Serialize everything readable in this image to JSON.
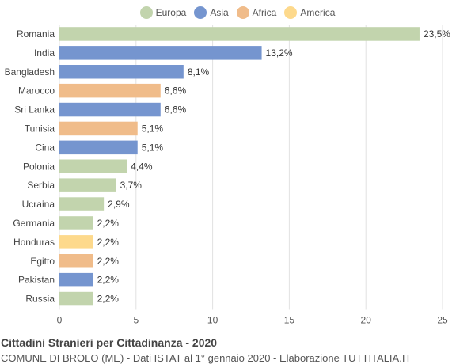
{
  "chart_data": {
    "type": "bar",
    "orientation": "horizontal",
    "title": "Cittadini Stranieri per Cittadinanza - 2020",
    "subtitle": "COMUNE DI BROLO (ME) - Dati ISTAT al 1° gennaio 2020 - Elaborazione TUTTITALIA.IT",
    "xlim": [
      0,
      25
    ],
    "xticks": [
      0,
      5,
      10,
      15,
      20,
      25
    ],
    "grid": true,
    "legend_position": "top-center",
    "legend": [
      {
        "name": "Europa",
        "color": "#c2d4ad"
      },
      {
        "name": "Asia",
        "color": "#7595cf"
      },
      {
        "name": "Africa",
        "color": "#f0bc8a"
      },
      {
        "name": "America",
        "color": "#fdd98c"
      }
    ],
    "categories": [
      "Romania",
      "India",
      "Bangladesh",
      "Marocco",
      "Sri Lanka",
      "Tunisia",
      "Cina",
      "Polonia",
      "Serbia",
      "Ucraina",
      "Germania",
      "Honduras",
      "Egitto",
      "Pakistan",
      "Russia"
    ],
    "values": [
      23.5,
      13.2,
      8.1,
      6.6,
      6.6,
      5.1,
      5.1,
      4.4,
      3.7,
      2.9,
      2.2,
      2.2,
      2.2,
      2.2,
      2.2
    ],
    "value_labels": [
      "23,5%",
      "13,2%",
      "8,1%",
      "6,6%",
      "6,6%",
      "5,1%",
      "5,1%",
      "4,4%",
      "3,7%",
      "2,9%",
      "2,2%",
      "2,2%",
      "2,2%",
      "2,2%",
      "2,2%"
    ],
    "groups": [
      "Europa",
      "Asia",
      "Asia",
      "Africa",
      "Asia",
      "Africa",
      "Asia",
      "Europa",
      "Europa",
      "Europa",
      "Europa",
      "America",
      "Africa",
      "Asia",
      "Europa"
    ]
  }
}
